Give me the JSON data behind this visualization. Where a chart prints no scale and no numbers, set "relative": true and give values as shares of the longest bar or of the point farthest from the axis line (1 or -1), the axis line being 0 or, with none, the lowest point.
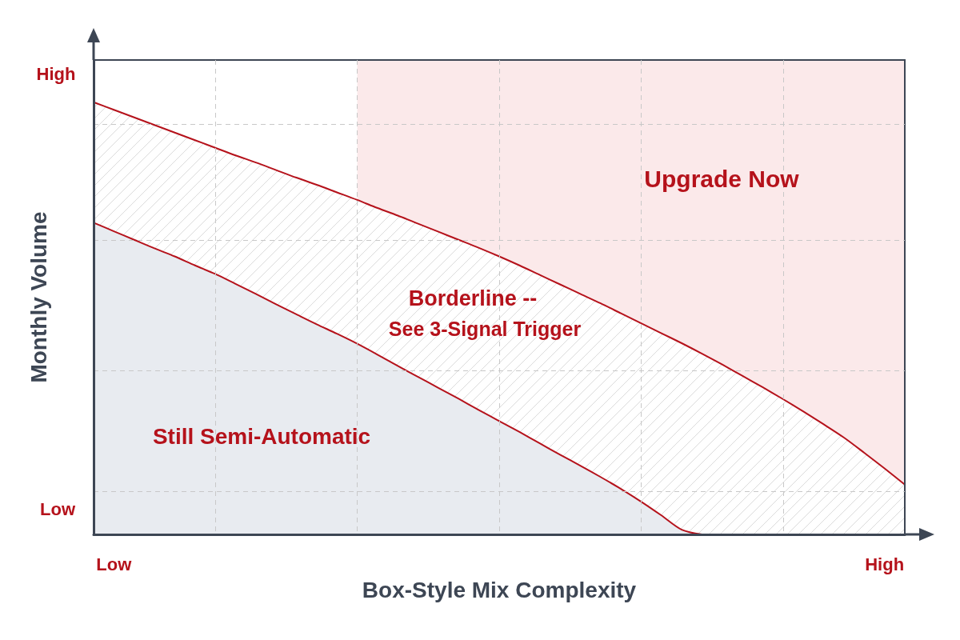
{
  "chart_data": {
    "type": "area",
    "relative": true,
    "xlabel": "Box-Style Mix Complexity",
    "ylabel": "Monthly Volume",
    "categories": [
      null,
      "Low",
      null,
      null,
      null,
      null,
      null,
      null,
      null,
      null,
      null,
      null,
      null,
      null,
      null,
      null,
      null,
      null,
      null,
      null,
      null,
      null,
      null,
      null,
      null,
      null,
      null,
      null,
      null,
      null,
      null,
      null,
      null,
      null,
      null,
      null,
      null,
      null,
      null,
      "High",
      null
    ],
    "series": [
      {
        "color": "#fbe9ea",
        "values": [
          null,
          null,
          null,
          null,
          null,
          null,
          null,
          null,
          null,
          null,
          null,
          null,
          null,
          1,
          1,
          1,
          1,
          1,
          1,
          1,
          1,
          1,
          1,
          1,
          1,
          1,
          1,
          1,
          1,
          1,
          1,
          1,
          1,
          1,
          1,
          1,
          1,
          1,
          1,
          1,
          1
        ]
      },
      {
        "color": "#b5121b",
        "values": [
          0.911,
          0.895,
          0.879,
          0.863,
          0.847,
          0.831,
          0.815,
          0.799,
          0.784,
          0.768,
          0.752,
          0.737,
          0.721,
          0.705,
          0.688,
          0.672,
          0.655,
          0.638,
          0.621,
          0.604,
          0.586,
          0.567,
          0.547,
          0.527,
          0.507,
          0.487,
          0.466,
          0.445,
          0.424,
          0.403,
          0.381,
          0.358,
          0.334,
          0.31,
          0.285,
          0.259,
          0.232,
          0.204,
          0.172,
          0.139,
          0.105
        ]
      },
      {
        "color": "#b5121b",
        "values": [
          0.657,
          0.639,
          0.621,
          0.603,
          0.586,
          0.567,
          0.549,
          0.528,
          0.507,
          0.485,
          0.464,
          0.443,
          0.423,
          0.402,
          0.379,
          0.355,
          0.332,
          0.309,
          0.286,
          0.262,
          0.239,
          0.216,
          0.192,
          0.168,
          0.145,
          0.121,
          0.096,
          0.069,
          0.04,
          0.01,
          0,
          null,
          null,
          null,
          null,
          null,
          null,
          null,
          null,
          null,
          null
        ]
      }
    ],
    "annotations": [
      "High",
      "Upgrade Now",
      "Borderline --",
      "See 3-Signal Trigger",
      "Still Semi-Automatic",
      "Low"
    ],
    "grid": true,
    "marker": "none"
  }
}
